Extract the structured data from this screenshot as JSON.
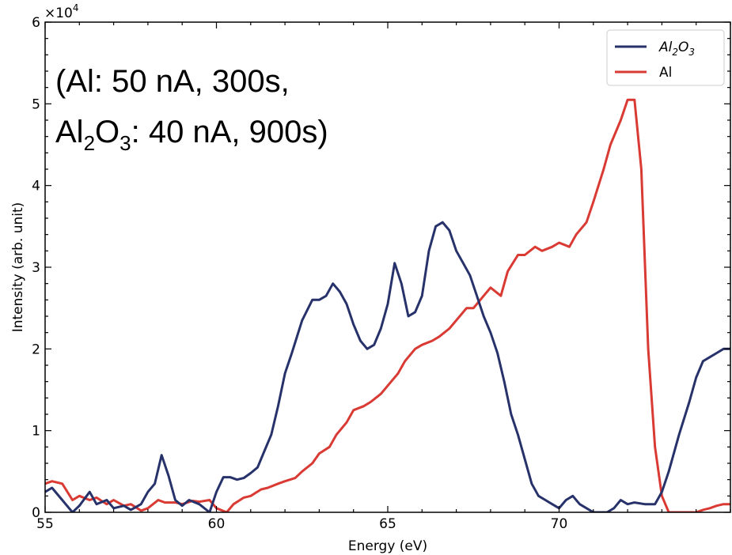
{
  "chart_data": {
    "type": "line",
    "xlabel": "Energy (eV)",
    "ylabel": "Intensity (arb. unit)",
    "xlim": [
      55,
      75
    ],
    "ylim": [
      0,
      60000
    ],
    "x_ticks": [
      55,
      60,
      65,
      70
    ],
    "y_ticks": [
      0,
      1,
      2,
      3,
      4,
      5,
      6
    ],
    "y_tick_labels": [
      "0",
      "1",
      "2",
      "3",
      "4",
      "5",
      "6"
    ],
    "y_multiplier": "×10",
    "y_multiplier_exp": "4",
    "grid": false,
    "legend_position": "top-right",
    "annotation": {
      "line1": "(Al: 50 nA, 300s,",
      "line2_a": "Al",
      "line2_a_sub": "2",
      "line2_b": "O",
      "line2_b_sub": "3",
      "line2_c": ": 40 nA, 900s)"
    },
    "series": [
      {
        "name": "Al2O3",
        "legend_label": "Al",
        "legend_sub1": "2",
        "legend_mid": "O",
        "legend_sub2": "3",
        "color": "#27326b",
        "x": [
          55.0,
          55.2,
          55.5,
          55.8,
          56.0,
          56.3,
          56.5,
          56.8,
          57.0,
          57.3,
          57.5,
          57.8,
          58.0,
          58.2,
          58.4,
          58.6,
          58.8,
          59.0,
          59.2,
          59.5,
          59.8,
          60.0,
          60.2,
          60.4,
          60.6,
          60.8,
          61.0,
          61.2,
          61.4,
          61.6,
          61.8,
          62.0,
          62.2,
          62.5,
          62.8,
          63.0,
          63.2,
          63.4,
          63.6,
          63.8,
          64.0,
          64.2,
          64.4,
          64.6,
          64.8,
          65.0,
          65.2,
          65.4,
          65.6,
          65.8,
          66.0,
          66.2,
          66.4,
          66.6,
          66.8,
          67.0,
          67.2,
          67.4,
          67.6,
          67.8,
          68.0,
          68.2,
          68.4,
          68.6,
          68.8,
          69.0,
          69.2,
          69.4,
          69.6,
          69.8,
          70.0,
          70.2,
          70.4,
          70.6,
          70.8,
          71.0,
          71.2,
          71.4,
          71.6,
          71.8,
          72.0,
          72.2,
          72.5,
          72.8,
          73.0,
          73.2,
          73.5,
          73.8,
          74.0,
          74.2,
          74.4,
          74.6,
          74.8,
          75.0
        ],
        "y": [
          2500,
          3000,
          1500,
          0,
          800,
          2500,
          1000,
          1500,
          500,
          800,
          300,
          1000,
          2500,
          3500,
          7000,
          4500,
          1500,
          800,
          1500,
          1000,
          0,
          2500,
          4300,
          4300,
          4000,
          4200,
          4800,
          5500,
          7500,
          9500,
          13000,
          17000,
          19500,
          23500,
          26000,
          26000,
          26500,
          28000,
          27000,
          25500,
          23000,
          21000,
          20000,
          20500,
          22500,
          25500,
          30500,
          28000,
          24000,
          24500,
          26500,
          32000,
          35000,
          35500,
          34500,
          32000,
          30500,
          29000,
          26500,
          24000,
          22000,
          19500,
          16000,
          12000,
          9500,
          6500,
          3500,
          2000,
          1500,
          1000,
          500,
          1500,
          2000,
          1000,
          500,
          0,
          0,
          0,
          500,
          1500,
          1000,
          1200,
          1000,
          1000,
          2500,
          5000,
          9500,
          13500,
          16500,
          18500,
          19000,
          19500,
          20000,
          20000
        ]
      },
      {
        "name": "Al",
        "legend_label": "Al",
        "color": "#d93a33",
        "x": [
          55.0,
          55.2,
          55.5,
          55.8,
          56.0,
          56.3,
          56.5,
          56.8,
          57.0,
          57.3,
          57.5,
          57.8,
          58.0,
          58.3,
          58.5,
          58.8,
          59.0,
          59.3,
          59.5,
          59.8,
          60.0,
          60.3,
          60.5,
          60.8,
          61.0,
          61.3,
          61.5,
          61.8,
          62.0,
          62.3,
          62.5,
          62.8,
          63.0,
          63.3,
          63.5,
          63.8,
          64.0,
          64.3,
          64.5,
          64.8,
          65.0,
          65.3,
          65.5,
          65.8,
          66.0,
          66.3,
          66.5,
          66.8,
          67.0,
          67.3,
          67.5,
          67.8,
          68.0,
          68.3,
          68.5,
          68.8,
          69.0,
          69.3,
          69.5,
          69.8,
          70.0,
          70.3,
          70.5,
          70.8,
          71.0,
          71.3,
          71.5,
          71.8,
          72.0,
          72.2,
          72.4,
          72.6,
          72.8,
          73.0,
          73.2,
          73.4,
          73.6,
          73.8,
          74.0,
          74.2,
          74.4,
          74.6,
          74.8,
          75.0
        ],
        "y": [
          3500,
          3800,
          3500,
          1500,
          2000,
          1500,
          1800,
          1000,
          1500,
          800,
          1000,
          200,
          500,
          1500,
          1200,
          1200,
          1000,
          1400,
          1300,
          1500,
          500,
          0,
          1000,
          1800,
          2000,
          2800,
          3000,
          3500,
          3800,
          4200,
          5000,
          6000,
          7200,
          8000,
          9500,
          11000,
          12500,
          13000,
          13500,
          14500,
          15500,
          17000,
          18500,
          20000,
          20500,
          21000,
          21500,
          22500,
          23500,
          25000,
          25000,
          26500,
          27500,
          26500,
          29500,
          31500,
          31500,
          32500,
          32000,
          32500,
          33000,
          32500,
          34000,
          35500,
          38000,
          42000,
          45000,
          48000,
          50500,
          50500,
          42000,
          20000,
          8000,
          2000,
          0,
          0,
          0,
          0,
          0,
          300,
          500,
          800,
          1000,
          1000
        ]
      }
    ]
  }
}
